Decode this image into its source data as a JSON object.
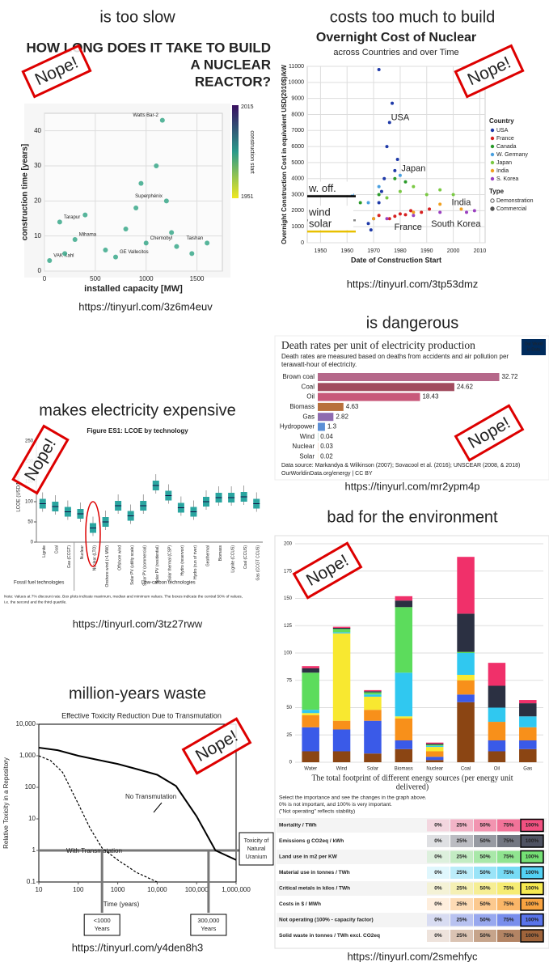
{
  "stamp": "Nope!",
  "panels": [
    {
      "heading": "is too slow",
      "link": "https://tinyurl.com/3z6m4euv",
      "chart": {
        "type": "scatter",
        "title_lines": [
          "HOW LONG DOES IT TAKE TO BUILD",
          "A NUCLEAR",
          "REACTOR?"
        ],
        "xlabel": "installed capacity [MW]",
        "ylabel": "construction time [years]",
        "xlim": [
          0,
          1750
        ],
        "ylim": [
          0,
          45
        ],
        "xticks": [
          0,
          500,
          1000,
          1500
        ],
        "yticks": [
          0,
          10,
          20,
          30,
          40
        ],
        "grid": true,
        "color": "#3aa88a",
        "x": [
          1160,
          150,
          1200,
          300,
          50,
          700,
          1000,
          1600,
          800,
          950,
          1100,
          200,
          1300,
          600,
          1450,
          1250,
          400,
          900
        ],
        "values": [
          43,
          14,
          20,
          9,
          3,
          4,
          8,
          8,
          12,
          25,
          30,
          5,
          7,
          6,
          5,
          11,
          16,
          18
        ],
        "point_labels": [
          "Watts Bar-2",
          "Tarapur",
          "Superphénix",
          "Mihama",
          "VAK Kahl",
          "GE Vallecitos",
          "Chernobyl",
          "Taishan",
          null,
          null,
          null,
          null,
          null,
          null,
          null,
          null,
          null,
          null
        ],
        "colorbar": {
          "label": "construction start",
          "ticks": [
            1951,
            2015
          ]
        }
      }
    },
    {
      "heading": "costs too much to build",
      "link": "https://tinyurl.com/3tp53dmz",
      "chart": {
        "type": "scatter",
        "title": "Overnight Cost of Nuclear",
        "subtitle": "across Countries and over Time",
        "xlabel": "Date of Construction Start",
        "ylabel": "Overnight Construction Cost in equivalent USD(2010$)/kW",
        "xlim": [
          1945,
          2012
        ],
        "xticks": [
          1950,
          1960,
          1970,
          1980,
          1990,
          2000,
          2010
        ],
        "ylim": [
          0,
          11000
        ],
        "yticks": [
          0,
          1000,
          2000,
          3000,
          4000,
          5000,
          6000,
          7000,
          8000,
          9000,
          10000,
          11000
        ],
        "grid": true,
        "legend_title": "Country",
        "series": [
          {
            "name": "USA",
            "color": "#1f3aa8",
            "x": [
              1968,
              1970,
              1972,
              1974,
              1975,
              1976,
              1978,
              1972,
              1977,
              1969,
              1973,
              1979
            ],
            "values": [
              1200,
              1500,
              2500,
              4000,
              6000,
              7500,
              4500,
              10800,
              8700,
              800,
              3200,
              5200
            ]
          },
          {
            "name": "France",
            "color": "#d62020",
            "x": [
              1972,
              1976,
              1980,
              1984,
              1988,
              1991,
              1978,
              1982
            ],
            "values": [
              1700,
              1500,
              1800,
              2000,
              1900,
              2100,
              1650,
              1750
            ]
          },
          {
            "name": "Canada",
            "color": "#2a9a2a",
            "x": [
              1965,
              1972,
              1978,
              1982
            ],
            "values": [
              2500,
              3000,
              4000,
              3800
            ]
          },
          {
            "name": "W. Germany",
            "color": "#4aa0e0",
            "x": [
              1962,
              1968,
              1972,
              1980
            ],
            "values": [
              3000,
              2500,
              3500,
              4200
            ]
          },
          {
            "name": "Japan",
            "color": "#7ac943",
            "x": [
              1975,
              1980,
              1985,
              1990,
              1995,
              2000
            ],
            "values": [
              2800,
              3200,
              3500,
              3000,
              3300,
              3000
            ]
          },
          {
            "name": "India",
            "color": "#f0a020",
            "x": [
              1970,
              1985,
              1995,
              2003
            ],
            "values": [
              1500,
              1900,
              2400,
              2100
            ]
          },
          {
            "name": "S. Korea",
            "color": "#9a40c0",
            "x": [
              1975,
              1985,
              1995,
              2005,
              2008
            ],
            "values": [
              1500,
              1700,
              1900,
              1900,
              2000
            ]
          }
        ],
        "type_legend": {
          "title": "Type",
          "entries": [
            "Demonstration",
            "Commercial"
          ]
        },
        "reference_lines": [
          {
            "label": "w. off.",
            "value": 2900,
            "color": "#000000"
          },
          {
            "label": "wind",
            "value": 1400,
            "color": "#888888"
          },
          {
            "label": "solar",
            "value": 700,
            "color": "#e8c000"
          }
        ],
        "annotations": [
          {
            "text": "USA",
            "x": 1980,
            "y": 7800,
            "color": "#1f3aa8"
          },
          {
            "text": "Japan",
            "x": 1985,
            "y": 4600,
            "color": "#2a9a2a"
          },
          {
            "text": "India",
            "x": 2003,
            "y": 2500,
            "color": "#f0a020"
          },
          {
            "text": "France",
            "x": 1983,
            "y": 950,
            "color": "#d62020"
          },
          {
            "text": "South Korea",
            "x": 2001,
            "y": 1150,
            "color": "#9a40c0"
          }
        ]
      }
    },
    {
      "heading": "is dangerous",
      "link": "https://tinyurl.com/mr2ypm4p",
      "chart": {
        "type": "bar",
        "orientation": "horizontal",
        "title": "Death rates per unit of electricity production",
        "subtitle_lines": [
          "Death rates are measured based on deaths from accidents and air pollution per",
          "terawatt-hour of electricity."
        ],
        "categories": [
          "Brown coal",
          "Coal",
          "Oil",
          "Biomass",
          "Gas",
          "Hydropower",
          "Wind",
          "Nuclear",
          "Solar"
        ],
        "values": [
          32.72,
          24.62,
          18.43,
          4.63,
          2.82,
          1.3,
          0.04,
          0.03,
          0.02
        ],
        "colors": [
          "#b5688a",
          "#a14b5e",
          "#c8587a",
          "#b8703c",
          "#8e6bb0",
          "#5b8fd6",
          "#4c9a7a",
          "#d46a3a",
          "#e0b030"
        ],
        "xlim": [
          0,
          36
        ],
        "source_lines": [
          "Data source: Markandya & Wilkinson (2007); Sovacool et al. (2016); UNSCEAR (2008, & 2018)",
          "OurWorldinData.org/energy | CC BY"
        ],
        "logo": [
          "Our World",
          "in Data"
        ]
      }
    },
    {
      "heading": "makes electricity expensive",
      "link": "https://tinyurl.com/3tz27rww",
      "chart": {
        "type": "box",
        "title": "Figure ES1: LCOE by technology",
        "ylabel": "LCOE (USD/MWh)",
        "ylim": [
          0,
          250
        ],
        "yticks": [
          0,
          50,
          100,
          150,
          200,
          250
        ],
        "color": "#2aa5a0",
        "categories": [
          "Lignite",
          "Coal",
          "Gas (CCGT)",
          "Nuclear",
          "Nuclear (LTO)",
          "Onshore wind (>1 MW)",
          "Offshore wind",
          "Solar PV (utility scale)",
          "Solar PV (commercial)",
          "Solar PV (residential)",
          "Solar thermal (CSP)",
          "Hydro (reservoir)",
          "Hydro (run of river)",
          "Geothermal",
          "Biomass",
          "Lignite (CCUS)",
          "Coal (CCUS)",
          "Gas (CCGT CCUS)"
        ],
        "values": [
          95,
          88,
          75,
          70,
          35,
          50,
          90,
          65,
          90,
          140,
          115,
          85,
          75,
          100,
          110,
          110,
          112,
          95
        ],
        "groups": [
          "Fossil fuel technologies",
          "Low-carbon technologies"
        ],
        "note_lines": [
          "Note: Values at 7% discount rate. Box plots indicate maximum, median and minimum values. The boxes indicate the central 50% of values,",
          "i.e. the second and the third quartile."
        ]
      }
    },
    {
      "heading": "bad for the environment",
      "link": "https://tinyurl.com/2smehfyc",
      "chart": {
        "type": "stacked_bar",
        "categories": [
          "Water",
          "Wind",
          "Solar",
          "Biomass",
          "Nuclear",
          "Coal",
          "Oil",
          "Gas"
        ],
        "ylim": [
          0,
          200
        ],
        "yticks": [
          0,
          25,
          50,
          75,
          100,
          125,
          150,
          175,
          200
        ],
        "grid": true,
        "series": [
          {
            "name": "Mortality / TWh",
            "color": "#f0306a",
            "values": [
              2,
              1,
              1,
              4,
              1,
              52,
              21,
              3
            ]
          },
          {
            "name": "Emissions g CO2eq / kWh",
            "color": "#2b3042",
            "values": [
              4,
              1,
              1,
              6,
              1,
              35,
              20,
              12
            ]
          },
          {
            "name": "Land use in m2 per KW",
            "color": "#5cdc5c",
            "values": [
              34,
              3,
              2,
              60,
              1,
              1,
              0,
              0
            ]
          },
          {
            "name": "Material use in tonnes / TWh",
            "color": "#30c8f0",
            "values": [
              3,
              1,
              2,
              40,
              1,
              20,
              13,
              10
            ]
          },
          {
            "name": "Critical metals in kilos / TWh",
            "color": "#f8e830",
            "values": [
              2,
              80,
              12,
              2,
              4,
              5,
              0,
              0
            ]
          },
          {
            "name": "Costs in $ / MWh",
            "color": "#f8901a",
            "values": [
              11,
              8,
              10,
              20,
              5,
              13,
              17,
              12
            ]
          },
          {
            "name": "Not operating (100% - capacity factor)",
            "color": "#3a5ae8",
            "values": [
              22,
              20,
              30,
              8,
              3,
              7,
              10,
              8
            ]
          },
          {
            "name": "Solid waste in tonnes / TWh excl. CO2eq",
            "color": "#8b4513",
            "values": [
              10,
              10,
              8,
              12,
              2,
              55,
              10,
              12
            ]
          }
        ],
        "caption_lines": [
          "The total footprint of different energy sources (per energy unit",
          "delivered)"
        ],
        "table": {
          "instructions": [
            "Select the importance and see the changes in the graph above.",
            "0% is not important, and 100% is very important.",
            "(\"Not operating\" reflects stability)"
          ],
          "levels": [
            "0%",
            "25%",
            "50%",
            "75%",
            "100%"
          ]
        }
      }
    },
    {
      "heading": "million-years waste",
      "link": "https://tinyurl.com/y4den8h3",
      "chart": {
        "type": "line",
        "title": "Effective Toxicity Reduction Due to Transmutation",
        "xlabel": "Time (years)",
        "ylabel": "Relative Toxicity in a Repository",
        "log_x": true,
        "log_y": true,
        "xlim": [
          10,
          1000000
        ],
        "ylim": [
          0.1,
          10000
        ],
        "xticks": [
          10,
          100,
          1000,
          {
            "value": 10000,
            "label": "10,000"
          },
          {
            "value": 100000,
            "label": "100,000"
          },
          {
            "value": 1000000,
            "label": "1,000,000"
          }
        ],
        "yticks": [
          0.1,
          1,
          10,
          100,
          {
            "value": 1000,
            "label": "1,000"
          },
          {
            "value": 10000,
            "label": "10,000"
          }
        ],
        "series": [
          {
            "name": "No Transmutation",
            "color": "#000000",
            "x": [
              10,
              30,
              100,
              300,
              1000,
              3000,
              10000,
              30000,
              100000,
              300000,
              1000000
            ],
            "values": [
              1800,
              1500,
              1000,
              750,
              550,
              380,
              250,
              110,
              12,
              1,
              0.5
            ]
          },
          {
            "name": "With Transmutation",
            "color": "#000000",
            "x": [
              10,
              20,
              40,
              100,
              200,
              400,
              1000,
              3000,
              10000
            ],
            "values": [
              1000,
              700,
              300,
              30,
              5,
              1.2,
              0.5,
              0.2,
              0.1
            ]
          }
        ],
        "reference": {
          "value": 1,
          "label_lines": [
            "Toxicity of",
            "Natural",
            "Uranium"
          ]
        },
        "markers": [
          {
            "x": 400,
            "label_lines": [
              "<1000",
              "Years"
            ]
          },
          {
            "x": 200000,
            "label_lines": [
              "300,000",
              "Years"
            ]
          }
        ]
      }
    }
  ]
}
